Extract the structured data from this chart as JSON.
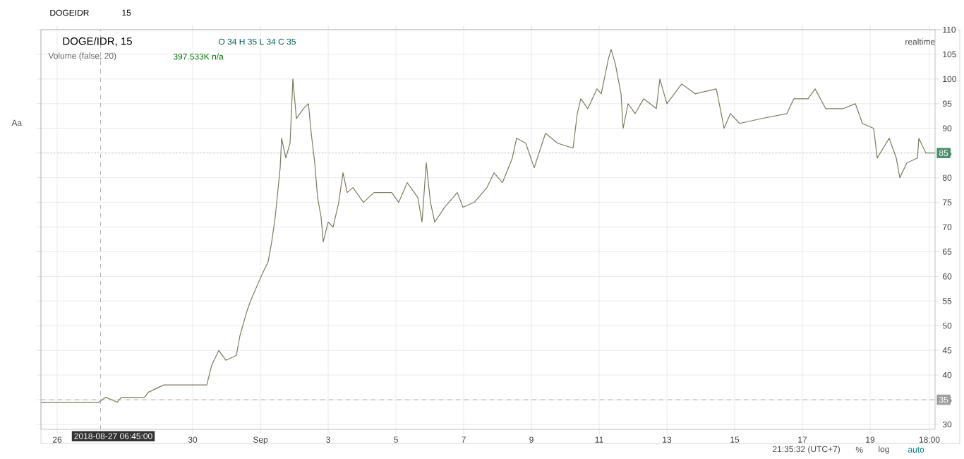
{
  "chart_data": {
    "type": "line",
    "title": "DOGE/IDR, 15",
    "subtitle": "Volume (false, 20)",
    "annotations": [
      "O 34 H 35 L 34 C 35",
      "397.533K n/a",
      "realtime",
      "DOGEIDR",
      "15",
      "21:35:32 (UTC+7)",
      "%",
      "log",
      "auto",
      "Aa"
    ],
    "xlim": [
      "2018-08-25T12:30",
      "2018-09-20T22:00"
    ],
    "xticks": [
      {
        "value": "2018-08-26",
        "label": "26"
      },
      {
        "value": "2018-08-30",
        "label": "30"
      },
      {
        "value": "2018-09-01",
        "label": "Sep"
      },
      {
        "value": "2018-09-03",
        "label": "3"
      },
      {
        "value": "2018-09-05",
        "label": "5"
      },
      {
        "value": "2018-09-07",
        "label": "7"
      },
      {
        "value": "2018-09-09",
        "label": "9"
      },
      {
        "value": "2018-09-11",
        "label": "11"
      },
      {
        "value": "2018-09-13",
        "label": "13"
      },
      {
        "value": "2018-09-15",
        "label": "15"
      },
      {
        "value": "2018-09-17",
        "label": "17"
      },
      {
        "value": "2018-09-19",
        "label": "19"
      },
      {
        "value": "2018-09-20T18:00",
        "label": "18:00"
      }
    ],
    "ylim": [
      29,
      110
    ],
    "yticks": [
      30,
      35,
      40,
      45,
      50,
      55,
      60,
      65,
      70,
      75,
      80,
      85,
      90,
      95,
      100,
      105,
      110
    ],
    "grid": true,
    "legend": false,
    "marker": "none",
    "line_style": "solid",
    "series": [
      {
        "color": "#7d7a60",
        "x": [
          "2018-08-25T12:30",
          "2018-08-27T05:30",
          "2018-08-27T10:30",
          "2018-08-27T18:30",
          "2018-08-27T21:30",
          "2018-08-28T14:00",
          "2018-08-28T16:30",
          "2018-08-29T03:30",
          "2018-08-30T10:00",
          "2018-08-30T13:30",
          "2018-08-30T18:30",
          "2018-08-30T23:30",
          "2018-08-31T07:00",
          "2018-08-31T09:30",
          "2018-08-31T14:30",
          "2018-08-31T17:00",
          "2018-09-01T00:30",
          "2018-09-01T05:30",
          "2018-09-01T08:00",
          "2018-09-01T10:30",
          "2018-09-01T14:00",
          "2018-09-01T15:00",
          "2018-09-01T18:00",
          "2018-09-01T21:00",
          "2018-09-01T23:00",
          "2018-09-02T01:30",
          "2018-09-02T06:30",
          "2018-09-02T10:00",
          "2018-09-02T12:00",
          "2018-09-02T14:30",
          "2018-09-02T16:30",
          "2018-09-02T19:00",
          "2018-09-02T20:30",
          "2018-09-03T00:00",
          "2018-09-03T03:30",
          "2018-09-03T07:30",
          "2018-09-03T10:30",
          "2018-09-03T13:30",
          "2018-09-03T17:30",
          "2018-09-04T01:00",
          "2018-09-04T08:30",
          "2018-09-04T21:00",
          "2018-09-05T02:00",
          "2018-09-05T08:00",
          "2018-09-05T15:30",
          "2018-09-05T18:30",
          "2018-09-05T21:30",
          "2018-09-06T00:30",
          "2018-09-06T03:30",
          "2018-09-06T10:30",
          "2018-09-06T19:30",
          "2018-09-06T23:30",
          "2018-09-07T07:30",
          "2018-09-07T16:30",
          "2018-09-07T21:30",
          "2018-09-08T03:30",
          "2018-09-08T10:30",
          "2018-09-08T13:30",
          "2018-09-08T20:00",
          "2018-09-09T02:00",
          "2018-09-09T06:30",
          "2018-09-09T10:00",
          "2018-09-09T18:30",
          "2018-09-10T05:30",
          "2018-09-10T08:30",
          "2018-09-10T11:00",
          "2018-09-10T16:00",
          "2018-09-10T22:30",
          "2018-09-11T01:30",
          "2018-09-11T06:30",
          "2018-09-11T08:30",
          "2018-09-11T11:30",
          "2018-09-11T15:30",
          "2018-09-11T17:00",
          "2018-09-11T20:30",
          "2018-09-12T01:30",
          "2018-09-12T07:30",
          "2018-09-12T16:30",
          "2018-09-12T19:00",
          "2018-09-13T00:00",
          "2018-09-13T10:30",
          "2018-09-13T20:00",
          "2018-09-14T11:00",
          "2018-09-14T14:30",
          "2018-09-14T16:30",
          "2018-09-14T21:00",
          "2018-09-15T03:30",
          "2018-09-15T19:30",
          "2018-09-16T13:00",
          "2018-09-16T18:00",
          "2018-09-17T04:00",
          "2018-09-17T09:00",
          "2018-09-17T16:30",
          "2018-09-18T05:00",
          "2018-09-18T13:30",
          "2018-09-18T18:30",
          "2018-09-19T02:30",
          "2018-09-19T05:00",
          "2018-09-19T13:30",
          "2018-09-19T18:30",
          "2018-09-19T21:00",
          "2018-09-20T02:00",
          "2018-09-20T09:30",
          "2018-09-20T10:30",
          "2018-09-20T15:30",
          "2018-09-20T22:00"
        ],
        "values": [
          34.5,
          34.5,
          35.5,
          34.5,
          35.5,
          35.5,
          36.5,
          38,
          38,
          42,
          45,
          43,
          44,
          48,
          53,
          55,
          60,
          63,
          67,
          72,
          82,
          88,
          84,
          87,
          100,
          92,
          94,
          95,
          89,
          83,
          76,
          72,
          67,
          71,
          70,
          75,
          81,
          77,
          78,
          75,
          77,
          77,
          75,
          79,
          76,
          71,
          83,
          75,
          71,
          74,
          77,
          74,
          75,
          78,
          81,
          79,
          84,
          88,
          87,
          82,
          86,
          89,
          87,
          86,
          93,
          96,
          94,
          98,
          97,
          104,
          106,
          103,
          97,
          90,
          95,
          93,
          96,
          94,
          100,
          95,
          99,
          97,
          98,
          93,
          90,
          93,
          91,
          92,
          93,
          96,
          96,
          98,
          94,
          94,
          95,
          91,
          90,
          84,
          88,
          84,
          80,
          83,
          84,
          88,
          85,
          85
        ]
      }
    ],
    "ref_lines": [
      {
        "axis": "y",
        "value": 85,
        "label": "85",
        "color": "#4a8f6c",
        "line_style": "dotted"
      },
      {
        "axis": "y",
        "value": 35,
        "label": "35",
        "color": "#9e9e9e",
        "line_style": "dashed"
      },
      {
        "axis": "x",
        "value": "2018-08-27T06:45",
        "label": "2018-08-27 06:45:00",
        "color": "#9e9e9e",
        "line_style": "dashed"
      }
    ]
  }
}
